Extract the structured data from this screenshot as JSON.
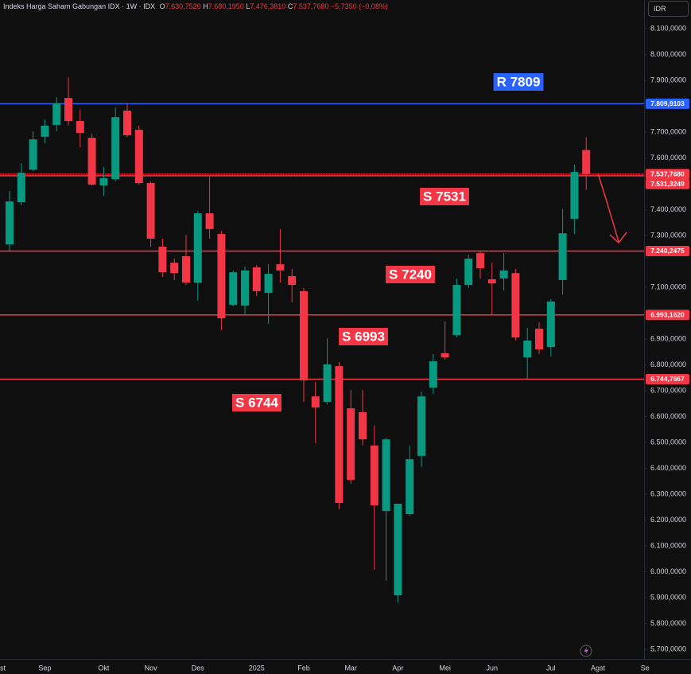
{
  "chart_data": {
    "type": "candlestick",
    "title": "Indeks Harga Saham Gabungan IDX · 1W · IDX",
    "ohlc_legend": [
      {
        "label": "O",
        "value": "7.630,7520"
      },
      {
        "label": "H",
        "value": "7.680,1950"
      },
      {
        "label": "L",
        "value": "7.476,3810"
      },
      {
        "label": "C",
        "value": "7.537,7680"
      }
    ],
    "change": "−5,7350 (−0,08%)",
    "currency": "IDR",
    "up_color": "#089981",
    "down_color": "#f23645",
    "categories": [
      "st",
      null,
      null,
      null,
      "Sep",
      null,
      null,
      null,
      null,
      "Okt",
      null,
      null,
      null,
      "Nov",
      null,
      null,
      null,
      "Des",
      null,
      null,
      null,
      null,
      "2025",
      null,
      null,
      null,
      "Feb",
      null,
      null,
      null,
      "Mar",
      null,
      null,
      null,
      "Apr",
      null,
      null,
      null,
      "Mei",
      null,
      null,
      null,
      "Jun",
      null,
      null,
      null,
      null,
      "Jul",
      null,
      null,
      null,
      "Agst",
      null,
      null,
      null,
      "Se"
    ],
    "open": [
      null,
      7266,
      7429,
      7555,
      7682,
      7728,
      7832,
      7743,
      7678,
      7494,
      7518,
      7783,
      7709,
      7503,
      7257,
      7195,
      7220,
      7118,
      7386,
      7306,
      7032,
      7029,
      7177,
      7078,
      7189,
      7143,
      7085,
      6678,
      6657,
      6795,
      6632,
      6617,
      6488,
      6235,
      5909,
      6223,
      6448,
      6712,
      6845,
      6915,
      7109,
      7232,
      7131,
      7134,
      7155,
      6829,
      6940,
      6869,
      7128,
      7365,
      7630.752,
      null,
      null,
      null,
      null,
      null
    ],
    "high": [
      null,
      7472,
      7580,
      7703,
      7749,
      7835,
      7912,
      7786,
      7694,
      7565,
      7795,
      7811,
      7725,
      7509,
      7288,
      7211,
      7303,
      7395,
      7528,
      7318,
      7165,
      7180,
      7186,
      7189,
      7325,
      7171,
      7097,
      6734,
      6903,
      6811,
      6703,
      6703,
      6565,
      6518,
      6257,
      6488,
      6697,
      6842,
      6968,
      7134,
      7226,
      7238,
      7195,
      7232,
      7171,
      6943,
      6965,
      7054,
      7402,
      7574,
      7680.195,
      null,
      null,
      null,
      null,
      null
    ],
    "low": [
      null,
      7242,
      7417,
      7549,
      7657,
      7703,
      7725,
      7642,
      7494,
      7454,
      7509,
      7682,
      7497,
      7257,
      7140,
      7128,
      7109,
      7048,
      7288,
      6934,
      7026,
      6995,
      7066,
      6958,
      7118,
      7042,
      6657,
      6497,
      6648,
      6241,
      6340,
      6488,
      6008,
      5965,
      5881,
      6217,
      6405,
      6688,
      6820,
      6906,
      7097,
      7134,
      6995,
      7088,
      6894,
      6746,
      6842,
      6832,
      7072,
      7306,
      7476.381,
      null,
      null,
      null,
      null,
      null
    ],
    "close": [
      null,
      7432,
      7543,
      7672,
      7725,
      7811,
      7743,
      7697,
      7497,
      7522,
      7758,
      7688,
      7503,
      7288,
      7158,
      7155,
      7118,
      7386,
      7325,
      6980,
      7158,
      7165,
      7085,
      7152,
      7165,
      7109,
      6740,
      6635,
      6802,
      6266,
      6355,
      6512,
      6257,
      6512,
      6263,
      6435,
      6678,
      6814,
      6829,
      7109,
      7211,
      7174,
      7115,
      7165,
      6906,
      6894,
      6860,
      7045,
      7309,
      7546,
      7537.768,
      null,
      null,
      null,
      null,
      null
    ],
    "ylim": [
      5663,
      8211
    ],
    "yticks": [
      {
        "value": 8100,
        "label": "8.100,0000"
      },
      {
        "value": 8000,
        "label": "8.000,0000"
      },
      {
        "value": 7900,
        "label": "7.900,0000"
      },
      {
        "value": 7700,
        "label": "7.700,0000"
      },
      {
        "value": 7600,
        "label": "7.600,0000"
      },
      {
        "value": 7400,
        "label": "7.400,0000"
      },
      {
        "value": 7300,
        "label": "7.300,0000"
      },
      {
        "value": 7100,
        "label": "7.100,0000"
      },
      {
        "value": 6900,
        "label": "6.900,0000"
      },
      {
        "value": 6800,
        "label": "6.800,0000"
      },
      {
        "value": 6700,
        "label": "6.700,0000"
      },
      {
        "value": 6600,
        "label": "6.600,0000"
      },
      {
        "value": 6500,
        "label": "6.500,0000"
      },
      {
        "value": 6400,
        "label": "6.400,0000"
      },
      {
        "value": 6300,
        "label": "6.300,0000"
      },
      {
        "value": 6200,
        "label": "6.200,0000"
      },
      {
        "value": 6100,
        "label": "6.100,0000"
      },
      {
        "value": 6000,
        "label": "6.000,0000"
      },
      {
        "value": 5900,
        "label": "5.900,0000"
      },
      {
        "value": 5800,
        "label": "5.800,0000"
      },
      {
        "value": 5700,
        "label": "5.700,0000"
      }
    ],
    "grid": false,
    "levels": [
      {
        "value": 7809.9103,
        "label": "7.809,9103",
        "color": "#2962ff",
        "style": "solid"
      },
      {
        "value": 7537.768,
        "label": "7.537,7680",
        "color": "#f23645",
        "style": "dotted"
      },
      {
        "value": 7531.3249,
        "label": "7.531,3249",
        "color": "#f23645",
        "style": "solid"
      },
      {
        "value": 7240.2475,
        "label": "7.240,2475",
        "color": "#f23645",
        "style": "solid"
      },
      {
        "value": 6993.162,
        "label": "6.993,1620",
        "color": "#f23645",
        "style": "solid"
      },
      {
        "value": 6744.7667,
        "label": "6.744,7667",
        "color": "#f23645",
        "style": "solid"
      }
    ],
    "annotations": [
      {
        "text": "R 7809",
        "color": "#2962ff"
      },
      {
        "text": "S 7531",
        "color": "#f23645"
      },
      {
        "text": "S 7240",
        "color": "#f23645"
      },
      {
        "text": "S 6993",
        "color": "#f23645"
      },
      {
        "text": "S 6744",
        "color": "#f23645"
      }
    ]
  }
}
